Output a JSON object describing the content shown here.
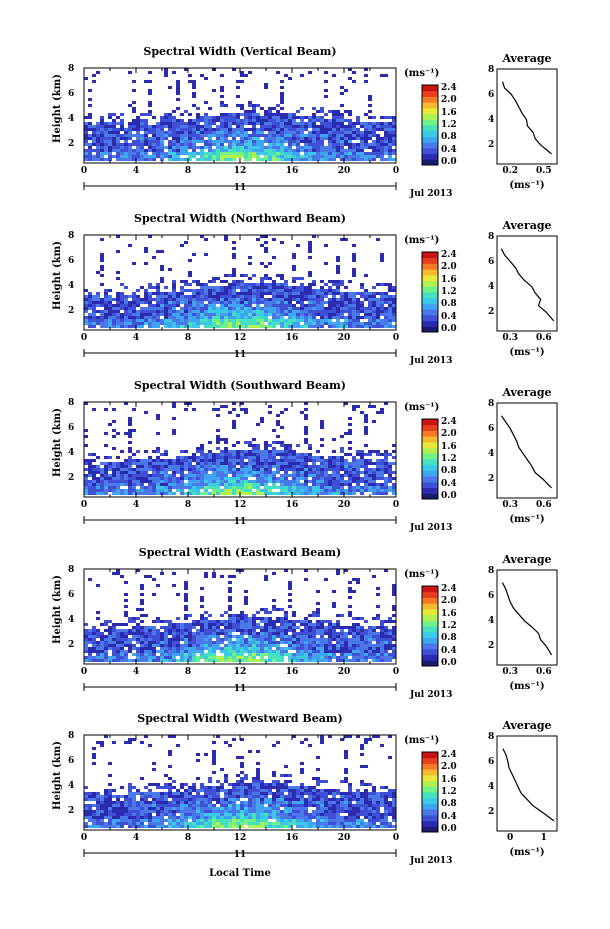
{
  "colors": {
    "colorbar": [
      "#1a1a6e",
      "#2b2bb0",
      "#3f4fd6",
      "#4a78e8",
      "#3fa5f0",
      "#3cc9e8",
      "#44e0c0",
      "#74f088",
      "#b0f050",
      "#e8e83a",
      "#f5b82e",
      "#f47a28",
      "#e8401e",
      "#c81414"
    ],
    "line": "#000000"
  },
  "panels": [
    {
      "title": "Spectral Width (Vertical Beam)",
      "avg_ticks": [
        "0.2",
        "0.5"
      ],
      "avg_xlim": [
        0.05,
        0.6
      ],
      "cbar_ticks": [
        "2.4",
        "2.0",
        "1.6",
        "1.2",
        "0.8",
        "0.4",
        "0.0"
      ]
    },
    {
      "title": "Spectral Width (Northward Beam)",
      "avg_ticks": [
        "0.3",
        "0.6"
      ],
      "avg_xlim": [
        0.1,
        0.65
      ],
      "cbar_ticks": [
        "2.4",
        "2.0",
        "1.6",
        "1.2",
        "0.8",
        "0.4",
        "0.0"
      ]
    },
    {
      "title": "Spectral Width (Southward Beam)",
      "avg_ticks": [
        "0.3",
        "0.6"
      ],
      "avg_xlim": [
        0.1,
        0.65
      ],
      "cbar_ticks": [
        "2.4",
        "2.0",
        "1.6",
        "1.2",
        "0.8",
        "0.4",
        "0.0"
      ]
    },
    {
      "title": "Spectral Width (Eastward Beam)",
      "avg_ticks": [
        "0.3",
        "0.6"
      ],
      "avg_xlim": [
        0.1,
        0.65
      ],
      "cbar_ticks": [
        "2.4",
        "2.0",
        "1.6",
        "1.2",
        "0.8",
        "0.4",
        "0.0"
      ]
    },
    {
      "title": "Spectral Width (Westward Beam)",
      "avg_ticks": [
        "0",
        "1"
      ],
      "avg_xlim": [
        0,
        1
      ],
      "cbar_ticks": [
        "2.4",
        "2.0",
        "1.6",
        "1.2",
        "0.8",
        "0.4",
        "0.0"
      ]
    }
  ],
  "labels": {
    "ylabel": "Height (km)",
    "x_ticks": [
      "0",
      "4",
      "8",
      "12",
      "16",
      "20",
      "0"
    ],
    "day": "11",
    "date": "Jul 2013",
    "unit": "(ms⁻¹)",
    "avg_title": "Average",
    "avg_unit": "(ms⁻¹)",
    "avg_yticks": [
      "8",
      "6",
      "4",
      "2"
    ],
    "xlabel": "Local Time",
    "y_ticks": [
      "8",
      "6",
      "4",
      "2"
    ]
  },
  "chart_data": [
    {
      "type": "heatmap",
      "title": "Spectral Width (Vertical Beam)",
      "xlabel": "",
      "ylabel": "Height (km)",
      "xlim": [
        0,
        24
      ],
      "ylim": [
        0,
        8
      ],
      "x_ticks": [
        0,
        4,
        8,
        12,
        16,
        20,
        24
      ],
      "y_ticks": [
        2,
        4,
        6,
        8
      ],
      "average": {
        "height_km": [
          0.8,
          1.5,
          2.0,
          2.5,
          3.0,
          3.5,
          4.0,
          4.5,
          5.0,
          5.5,
          6.0,
          6.5
        ],
        "width_ms": [
          0.55,
          0.45,
          0.4,
          0.38,
          0.33,
          0.32,
          0.28,
          0.25,
          0.22,
          0.18,
          0.12,
          0.1
        ]
      }
    },
    {
      "type": "heatmap",
      "title": "Spectral Width (Northward Beam)",
      "xlabel": "",
      "ylabel": "Height (km)",
      "xlim": [
        0,
        24
      ],
      "ylim": [
        0,
        8
      ],
      "x_ticks": [
        0,
        4,
        8,
        12,
        16,
        20,
        24
      ],
      "y_ticks": [
        2,
        4,
        6,
        8
      ],
      "average": {
        "height_km": [
          0.8,
          1.5,
          2.0,
          2.5,
          3.0,
          3.5,
          4.0,
          4.5,
          5.0,
          5.5,
          6.0,
          6.5
        ],
        "width_ms": [
          0.62,
          0.55,
          0.48,
          0.5,
          0.45,
          0.42,
          0.35,
          0.3,
          0.27,
          0.22,
          0.17,
          0.14
        ]
      }
    },
    {
      "type": "heatmap",
      "title": "Spectral Width (Southward Beam)",
      "xlabel": "",
      "ylabel": "Height (km)",
      "xlim": [
        0,
        24
      ],
      "ylim": [
        0,
        8
      ],
      "x_ticks": [
        0,
        4,
        8,
        12,
        16,
        20,
        24
      ],
      "y_ticks": [
        2,
        4,
        6,
        8
      ],
      "average": {
        "height_km": [
          0.8,
          1.5,
          2.0,
          2.5,
          3.0,
          3.5,
          4.0,
          4.5,
          5.0,
          5.5,
          6.0,
          6.5
        ],
        "width_ms": [
          0.6,
          0.52,
          0.45,
          0.42,
          0.38,
          0.34,
          0.3,
          0.28,
          0.25,
          0.22,
          0.18,
          0.14
        ]
      }
    },
    {
      "type": "heatmap",
      "title": "Spectral Width (Eastward Beam)",
      "xlabel": "",
      "ylabel": "Height (km)",
      "xlim": [
        0,
        24
      ],
      "ylim": [
        0,
        8
      ],
      "x_ticks": [
        0,
        4,
        8,
        12,
        16,
        20,
        24
      ],
      "y_ticks": [
        2,
        4,
        6,
        8
      ],
      "average": {
        "height_km": [
          0.8,
          1.5,
          2.0,
          2.5,
          3.0,
          3.5,
          4.0,
          4.5,
          5.0,
          5.5,
          6.0,
          6.5
        ],
        "width_ms": [
          0.6,
          0.55,
          0.5,
          0.48,
          0.42,
          0.35,
          0.3,
          0.25,
          0.22,
          0.2,
          0.18,
          0.15
        ]
      }
    },
    {
      "type": "heatmap",
      "title": "Spectral Width (Westward Beam)",
      "xlabel": "Local Time",
      "ylabel": "Height (km)",
      "xlim": [
        0,
        24
      ],
      "ylim": [
        0,
        8
      ],
      "x_ticks": [
        0,
        4,
        8,
        12,
        16,
        20,
        24
      ],
      "y_ticks": [
        2,
        4,
        6,
        8
      ],
      "average": {
        "height_km": [
          0.8,
          1.5,
          2.0,
          2.5,
          3.0,
          3.5,
          4.0,
          4.5,
          5.0,
          5.5,
          6.0,
          6.5
        ],
        "width_ms": [
          0.95,
          0.75,
          0.6,
          0.5,
          0.4,
          0.35,
          0.3,
          0.25,
          0.2,
          0.18,
          0.15,
          0.1
        ]
      }
    }
  ]
}
